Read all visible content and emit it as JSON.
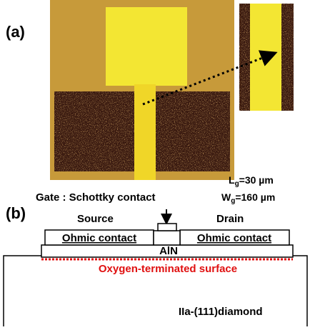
{
  "panel_a": {
    "label": "(a)",
    "lg": {
      "symbol": "L",
      "subscript": "g",
      "rest": "=30 µm"
    },
    "wg": {
      "symbol": "W",
      "subscript": "g",
      "rest": "=160 µm"
    }
  },
  "panel_b": {
    "label": "(b)",
    "gate": "Gate : Schottky contact",
    "source": "Source",
    "drain": "Drain",
    "ohmic_left": "Ohmic contact",
    "ohmic_right": "Ohmic contact",
    "barrier": "AlN",
    "surface": "Oxygen-terminated surface",
    "substrate": "IIa-(111)diamond"
  }
}
